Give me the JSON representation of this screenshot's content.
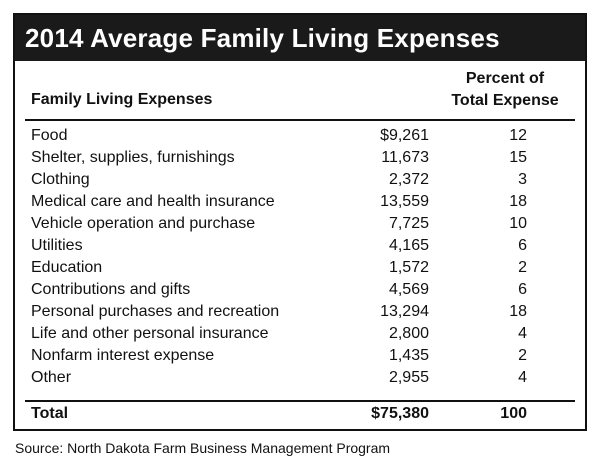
{
  "chart_data": {
    "type": "table",
    "title": "2014 Average Family Living Expenses",
    "columns": [
      "Family Living Expenses",
      "",
      "Percent of Total Expense"
    ],
    "rows": [
      {
        "label": "Food",
        "amount": "$9,261",
        "percent": "12"
      },
      {
        "label": "Shelter, supplies, furnishings",
        "amount": "11,673",
        "percent": "15"
      },
      {
        "label": "Clothing",
        "amount": "2,372",
        "percent": "3"
      },
      {
        "label": "Medical care and health insurance",
        "amount": "13,559",
        "percent": "18"
      },
      {
        "label": "Vehicle operation and purchase",
        "amount": "7,725",
        "percent": "10"
      },
      {
        "label": "Utilities",
        "amount": "4,165",
        "percent": "6"
      },
      {
        "label": "Education",
        "amount": "1,572",
        "percent": "2"
      },
      {
        "label": "Contributions and gifts",
        "amount": "4,569",
        "percent": "6"
      },
      {
        "label": "Personal purchases and recreation",
        "amount": "13,294",
        "percent": "18"
      },
      {
        "label": "Life and other personal insurance",
        "amount": "2,800",
        "percent": "4"
      },
      {
        "label": "Nonfarm interest expense",
        "amount": "1,435",
        "percent": "2"
      },
      {
        "label": "Other",
        "amount": "2,955",
        "percent": "4"
      }
    ],
    "total": {
      "label": "Total",
      "amount": "$75,380",
      "percent": "100"
    },
    "source": "Source: North Dakota Farm Business Management Program"
  },
  "header": {
    "col1": "Family Living Expenses",
    "col3_line1": "Percent of",
    "col3_line2": "Total Expense"
  }
}
